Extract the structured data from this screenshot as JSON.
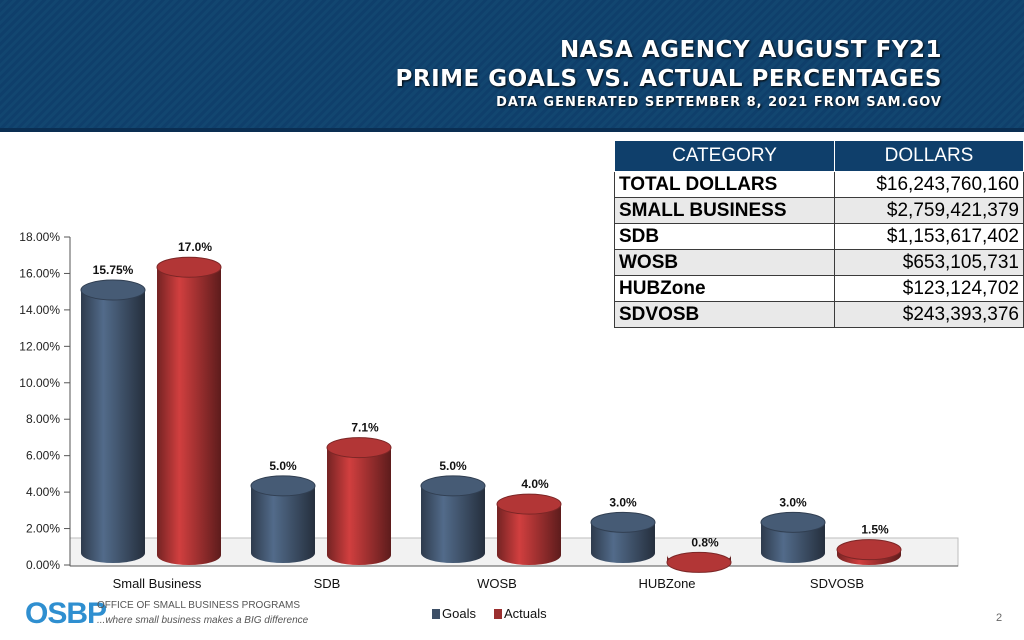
{
  "header": {
    "title_line1": "NASA AGENCY AUGUST FY21",
    "title_line2": "PRIME GOALS VS. ACTUAL PERCENTAGES",
    "subtitle": "DATA GENERATED SEPTEMBER 8, 2021 FROM SAM.GOV"
  },
  "table": {
    "headers": [
      "CATEGORY",
      "DOLLARS"
    ],
    "rows": [
      {
        "category": "TOTAL DOLLARS",
        "dollars": "$16,243,760,160"
      },
      {
        "category": "SMALL BUSINESS",
        "dollars": "$2,759,421,379"
      },
      {
        "category": "SDB",
        "dollars": "$1,153,617,402"
      },
      {
        "category": "WOSB",
        "dollars": "$653,105,731"
      },
      {
        "category": "HUBZone",
        "dollars": "$123,124,702"
      },
      {
        "category": "SDVOSB",
        "dollars": "$243,393,376"
      }
    ]
  },
  "chart_data": {
    "type": "bar",
    "categories": [
      "Small Business",
      "SDB",
      "WOSB",
      "HUBZone",
      "SDVOSB"
    ],
    "series": [
      {
        "name": "Goals",
        "values": [
          15.75,
          5.0,
          5.0,
          3.0,
          3.0
        ],
        "labels": [
          "15.75%",
          "5.0%",
          "5.0%",
          "3.0%",
          "3.0%"
        ],
        "color": "#3d4f66"
      },
      {
        "name": "Actuals",
        "values": [
          17.0,
          7.1,
          4.0,
          0.8,
          1.5
        ],
        "labels": [
          "17.0%",
          "7.1%",
          "4.0%",
          "0.8%",
          "1.5%"
        ],
        "color": "#9b2f2f"
      }
    ],
    "ylim": [
      0,
      18
    ],
    "yticks": [
      "0.00%",
      "2.00%",
      "4.00%",
      "6.00%",
      "8.00%",
      "10.00%",
      "12.00%",
      "14.00%",
      "16.00%",
      "18.00%"
    ],
    "legend_position": "bottom"
  },
  "footer": {
    "logo_mark": "OSBP",
    "logo_line1": "OFFICE OF SMALL BUSINESS PROGRAMS",
    "logo_line2": "...where small business makes a BIG difference",
    "page_number": "2"
  }
}
